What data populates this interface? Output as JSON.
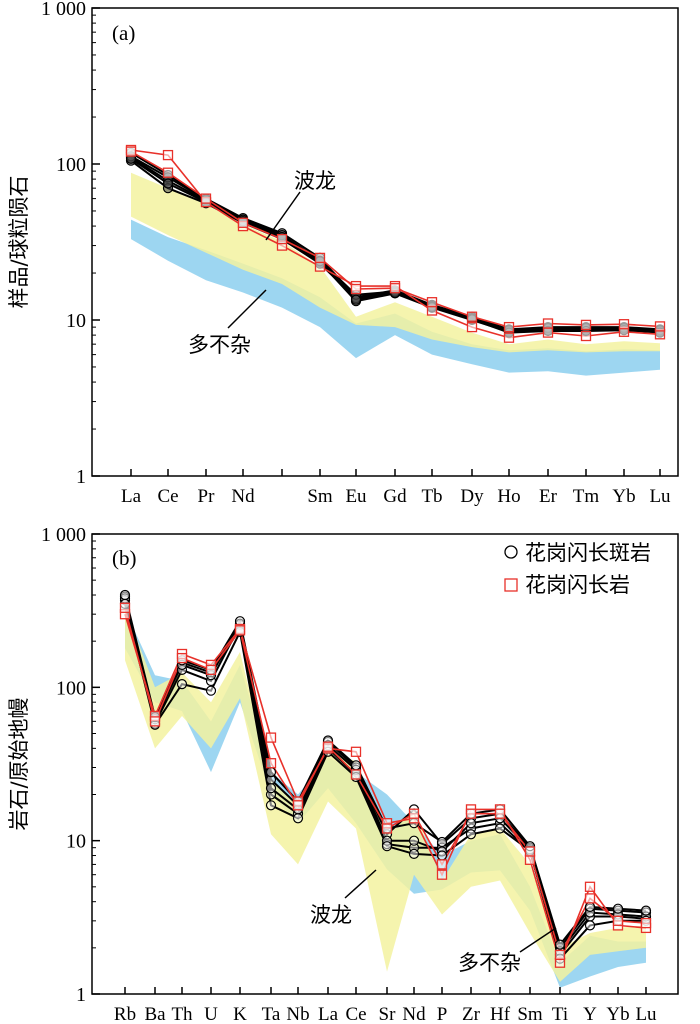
{
  "chart_data": [
    {
      "type": "line",
      "panel_label": "(a)",
      "ylabel": "样品/球粒陨石",
      "yscale": "log",
      "ylim": [
        1,
        1000
      ],
      "yticks": [
        "1",
        "10",
        "100",
        "1 000"
      ],
      "categories": [
        "La",
        "Ce",
        "Pr",
        "Nd",
        "",
        "Sm",
        "Eu",
        "Gd",
        "Tb",
        "Dy",
        "Ho",
        "Er",
        "Tm",
        "Yb",
        "Lu"
      ],
      "annotations": [
        "波龙",
        "多不杂"
      ],
      "colors": {
        "black_series": "#000000",
        "red_series": "#e8312a",
        "yellow_band": "#f3f2a0",
        "blue_band": "#8ccfee"
      },
      "black_series": [
        [
          118,
          85,
          60,
          45,
          36,
          25,
          14,
          15.5,
          12.5,
          10.5,
          8.7,
          9.0,
          9.0,
          9.0,
          8.7
        ],
        [
          110,
          78,
          58,
          43,
          34,
          23.5,
          13.2,
          14.8,
          12,
          10,
          8.4,
          8.6,
          8.6,
          8.7,
          8.4
        ],
        [
          105,
          70,
          56,
          42,
          33,
          23,
          13.8,
          15,
          12,
          10.2,
          8.5,
          8.8,
          8.8,
          8.8,
          8.5
        ],
        [
          112,
          82,
          59,
          44,
          35,
          24,
          14.5,
          15.2,
          12.3,
          10.3,
          8.6,
          8.9,
          8.9,
          8.9,
          8.6
        ],
        [
          108,
          75,
          57,
          43,
          34,
          23.8,
          13.5,
          14.9,
          12.1,
          10.1,
          8.3,
          8.5,
          8.5,
          8.6,
          8.3
        ]
      ],
      "red_series": [
        [
          123,
          114,
          57,
          40,
          30,
          22,
          16.5,
          16.5,
          11.5,
          9,
          7.7,
          8.3,
          7.9,
          8.4,
          8.1
        ],
        [
          120,
          88,
          60,
          42,
          33,
          25,
          15.8,
          16,
          13,
          10.5,
          9,
          9.5,
          9.3,
          9.4,
          9.1
        ]
      ],
      "yellow_band_upper": [
        88,
        70,
        55,
        41,
        32,
        22,
        10.5,
        13,
        10.5,
        8.3,
        7,
        7.5,
        7,
        7.3,
        7.1
      ],
      "yellow_band_lower": [
        46,
        35,
        27,
        21,
        17,
        12,
        9.3,
        9.0,
        7.5,
        6.7,
        6.2,
        6.4,
        6.2,
        6.3,
        6.3
      ],
      "blue_band_upper": [
        44,
        34,
        28,
        23,
        18.5,
        14,
        9.5,
        11,
        8.4,
        7.0,
        6.4,
        6.6,
        6.3,
        6.5,
        6.4
      ],
      "blue_band_lower": [
        33,
        24,
        18,
        15,
        12,
        9,
        5.7,
        8.0,
        6.0,
        5.2,
        4.6,
        4.7,
        4.4,
        4.6,
        4.8
      ]
    },
    {
      "type": "line",
      "panel_label": "(b)",
      "ylabel": "岩石/原始地幔",
      "yscale": "log",
      "ylim": [
        1,
        1000
      ],
      "yticks": [
        "1",
        "10",
        "100",
        "1 000"
      ],
      "categories": [
        "Rb",
        "Ba",
        "Th",
        "U",
        "K",
        "Ta",
        "Nb",
        "La",
        "Ce",
        "Sr",
        "Nd",
        "P",
        "Zr",
        "Hf",
        "Sm",
        "Ti",
        "Y",
        "Yb",
        "Lu"
      ],
      "legend": [
        {
          "label": "花岗闪长斑岩",
          "marker": "circle",
          "color": "#000000"
        },
        {
          "label": "花岗闪长岩",
          "marker": "square",
          "color": "#e8312a"
        }
      ],
      "legend_position": "top-right",
      "annotations": [
        "波龙",
        "多不杂"
      ],
      "black_series": [
        [
          390,
          60,
          145,
          125,
          240,
          25,
          17,
          44,
          30,
          11,
          16,
          9.5,
          14,
          15,
          9,
          2.0,
          3.6,
          3.5,
          3.4
        ],
        [
          370,
          58,
          130,
          110,
          255,
          20,
          15,
          40,
          27,
          9.5,
          9,
          9,
          12,
          13,
          8.5,
          1.8,
          3.2,
          3.2,
          3.1
        ],
        [
          380,
          62,
          140,
          120,
          260,
          22,
          16,
          42,
          29,
          10,
          10,
          8.5,
          13,
          14,
          8.8,
          1.9,
          3.4,
          3.3,
          3.2
        ],
        [
          350,
          57,
          105,
          95,
          230,
          17,
          14,
          38,
          26,
          9.2,
          8.2,
          8,
          11,
          12,
          8.6,
          1.7,
          2.8,
          3.0,
          3.0
        ],
        [
          400,
          64,
          150,
          130,
          270,
          28,
          18,
          45,
          31,
          12,
          13,
          9.8,
          15,
          16,
          9.2,
          2.1,
          3.7,
          3.6,
          3.5
        ]
      ],
      "red_series": [
        [
          300,
          65,
          165,
          140,
          240,
          47,
          18,
          40,
          38,
          13,
          14,
          6,
          16,
          16,
          7.5,
          1.6,
          5.0,
          2.8,
          2.7
        ],
        [
          330,
          60,
          155,
          130,
          235,
          32,
          17,
          41,
          27,
          12,
          15,
          7,
          15,
          15,
          8.5,
          1.8,
          4.2,
          3.0,
          2.9
        ]
      ],
      "yellow_band_upper": [
        330,
        100,
        125,
        80,
        170,
        25,
        17,
        38,
        33,
        11,
        16,
        5.5,
        11,
        12,
        7,
        2.0,
        2.5,
        2.7,
        2.8
      ],
      "yellow_band_lower": [
        150,
        40,
        65,
        40,
        85,
        11,
        7,
        18,
        12,
        1.4,
        6,
        3.3,
        5.0,
        5.5,
        2.5,
        1.2,
        1.8,
        1.9,
        2.0
      ],
      "blue_band_upper": [
        320,
        120,
        110,
        60,
        140,
        28,
        20,
        35,
        28,
        20,
        13,
        8,
        10,
        11,
        5,
        1.6,
        2.4,
        2.2,
        2.2
      ],
      "blue_band_lower": [
        180,
        80,
        70,
        28,
        80,
        20,
        13,
        22,
        13,
        6.5,
        4.5,
        4.8,
        6.2,
        6.4,
        3.5,
        1.1,
        1.3,
        1.5,
        1.6
      ]
    }
  ]
}
